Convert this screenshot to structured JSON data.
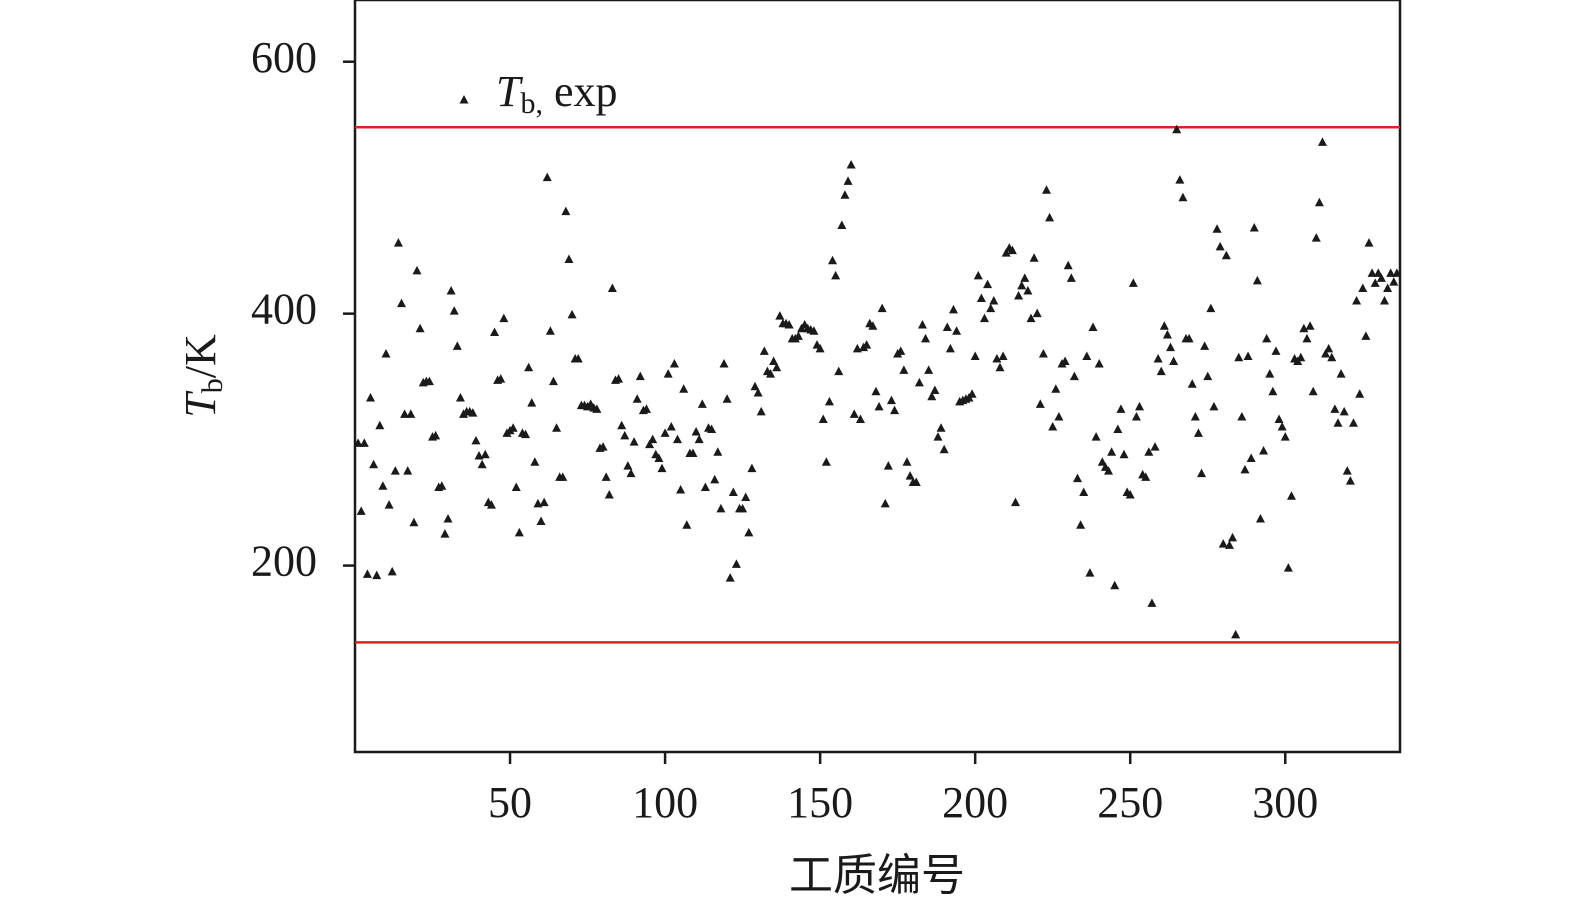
{
  "chart_data": {
    "type": "scatter",
    "x_label": "工质编号",
    "y_label": {
      "main": "T",
      "sub": "b",
      "unit": "/K"
    },
    "xlim": [
      0,
      337
    ],
    "ylim": [
      52,
      649
    ],
    "xticks": [
      50,
      100,
      150,
      200,
      250,
      300
    ],
    "yticks": [
      200,
      400,
      600
    ],
    "hlines": [
      {
        "value": 548,
        "color": "#d62728"
      },
      {
        "value": 139,
        "color": "#d62728"
      }
    ],
    "legend": "upper left",
    "series": [
      {
        "name": {
          "main": "T",
          "sub": "b,",
          "rest": " exp"
        },
        "color": "#1a1a1a",
        "marker": "triangle",
        "x": [
          1,
          2,
          3,
          4,
          5,
          6,
          7,
          8,
          9,
          10,
          11,
          12,
          13,
          14,
          15,
          16,
          17,
          18,
          19,
          20,
          21,
          22,
          23,
          24,
          25,
          26,
          27,
          28,
          29,
          30,
          31,
          32,
          33,
          34,
          35,
          36,
          37,
          38,
          39,
          40,
          41,
          42,
          43,
          44,
          45,
          46,
          47,
          48,
          49,
          50,
          51,
          52,
          53,
          54,
          55,
          56,
          57,
          58,
          59,
          60,
          61,
          62,
          63,
          64,
          65,
          66,
          67,
          68,
          69,
          70,
          71,
          72,
          73,
          74,
          75,
          76,
          77,
          78,
          79,
          80,
          81,
          82,
          83,
          84,
          85,
          86,
          87,
          88,
          89,
          90,
          91,
          92,
          93,
          94,
          95,
          96,
          97,
          98,
          99,
          100,
          101,
          102,
          103,
          104,
          105,
          106,
          107,
          108,
          109,
          110,
          111,
          112,
          113,
          114,
          115,
          116,
          117,
          118,
          119,
          120,
          121,
          122,
          123,
          124,
          125,
          126,
          127,
          128,
          129,
          130,
          131,
          132,
          133,
          134,
          135,
          136,
          137,
          138,
          139,
          140,
          141,
          142,
          143,
          144,
          145,
          146,
          147,
          148,
          149,
          150,
          151,
          152,
          153,
          154,
          155,
          156,
          157,
          158,
          159,
          160,
          161,
          162,
          163,
          164,
          165,
          166,
          167,
          168,
          169,
          170,
          171,
          172,
          173,
          174,
          175,
          176,
          177,
          178,
          179,
          180,
          181,
          182,
          183,
          184,
          185,
          186,
          187,
          188,
          189,
          190,
          191,
          192,
          193,
          194,
          195,
          196,
          197,
          198,
          199,
          200,
          201,
          202,
          203,
          204,
          205,
          206,
          207,
          208,
          209,
          210,
          211,
          212,
          213,
          214,
          215,
          216,
          217,
          218,
          219,
          220,
          221,
          222,
          223,
          224,
          225,
          226,
          227,
          228,
          229,
          230,
          231,
          232,
          233,
          234,
          235,
          236,
          237,
          238,
          239,
          240,
          241,
          242,
          243,
          244,
          245,
          246,
          247,
          248,
          249,
          250,
          251,
          252,
          253,
          254,
          255,
          256,
          257,
          258,
          259,
          260,
          261,
          262,
          263,
          264,
          265,
          266,
          267,
          268,
          269,
          270,
          271,
          272,
          273,
          274,
          275,
          276,
          277,
          278,
          279,
          280,
          281,
          282,
          283,
          284,
          285,
          286,
          287,
          288,
          289,
          290,
          291,
          292,
          293,
          294,
          295,
          296,
          297,
          298,
          299,
          300,
          301,
          302,
          303,
          304,
          305,
          306,
          307,
          308,
          309,
          310,
          311,
          312,
          313,
          314,
          315,
          316,
          317,
          318,
          319,
          320,
          321,
          322,
          323,
          324,
          325,
          326,
          327,
          328,
          329,
          330,
          331,
          332,
          333,
          334,
          335,
          336
        ],
        "values": [
          297,
          243,
          297,
          193,
          333,
          280,
          192,
          311,
          263,
          368,
          248,
          195,
          275,
          456,
          408,
          320,
          275,
          320,
          234,
          434,
          388,
          345,
          346,
          346,
          302,
          303,
          262,
          263,
          225,
          237,
          418,
          402,
          374,
          333,
          320,
          322,
          322,
          321,
          299,
          287,
          280,
          288,
          250,
          248,
          385,
          347,
          348,
          396,
          305,
          307,
          309,
          262,
          226,
          305,
          304,
          357,
          329,
          282,
          249,
          235,
          250,
          508,
          386,
          346,
          309,
          270,
          270,
          481,
          443,
          399,
          364,
          364,
          327,
          327,
          326,
          328,
          325,
          324,
          293,
          294,
          270,
          256,
          420,
          347,
          348,
          311,
          303,
          279,
          273,
          298,
          332,
          350,
          323,
          324,
          296,
          300,
          288,
          285,
          277,
          305,
          352,
          310,
          360,
          300,
          260,
          340,
          232,
          289,
          289,
          306,
          300,
          328,
          262,
          309,
          308,
          268,
          290,
          245,
          360,
          332,
          190,
          258,
          201,
          245,
          245,
          254,
          226,
          277,
          342,
          337,
          322,
          370,
          354,
          352,
          362,
          357,
          398,
          392,
          392,
          391,
          380,
          380,
          382,
          388,
          391,
          388,
          387,
          386,
          375,
          372,
          316,
          282,
          330,
          442,
          430,
          354,
          470,
          494,
          505,
          518,
          320,
          372,
          316,
          373,
          375,
          392,
          390,
          338,
          326,
          404,
          249,
          279,
          331,
          323,
          368,
          370,
          355,
          282,
          271,
          266,
          266,
          345,
          391,
          380,
          355,
          334,
          339,
          302,
          309,
          292,
          389,
          372,
          403,
          386,
          330,
          331,
          332,
          333,
          336,
          366,
          430,
          412,
          396,
          423,
          404,
          410,
          364,
          357,
          366,
          448,
          452,
          450,
          250,
          414,
          422,
          428,
          418,
          396,
          444,
          400,
          328,
          368,
          498,
          476,
          310,
          340,
          318,
          360,
          362,
          438,
          428,
          350,
          269,
          232,
          258,
          366,
          194,
          389,
          302,
          360,
          282,
          278,
          275,
          290,
          184,
          308,
          324,
          288,
          258,
          256,
          424,
          318,
          326,
          272,
          270,
          290,
          170,
          294,
          364,
          354,
          390,
          383,
          373,
          362,
          546,
          506,
          492,
          380,
          380,
          344,
          318,
          305,
          273,
          374,
          350,
          404,
          326,
          467,
          453,
          217,
          446,
          216,
          222,
          145,
          365,
          318,
          276,
          366,
          285,
          468,
          426,
          237,
          291,
          380,
          352,
          338,
          370,
          316,
          310,
          302,
          198,
          255,
          364,
          362,
          365,
          388,
          380,
          390,
          338,
          460,
          488,
          536,
          368,
          372,
          365,
          324,
          313,
          352,
          322,
          275,
          267,
          313,
          410,
          336,
          420,
          382,
          456,
          432,
          424,
          432,
          428,
          410,
          420,
          432,
          425,
          432
        ]
      }
    ]
  }
}
